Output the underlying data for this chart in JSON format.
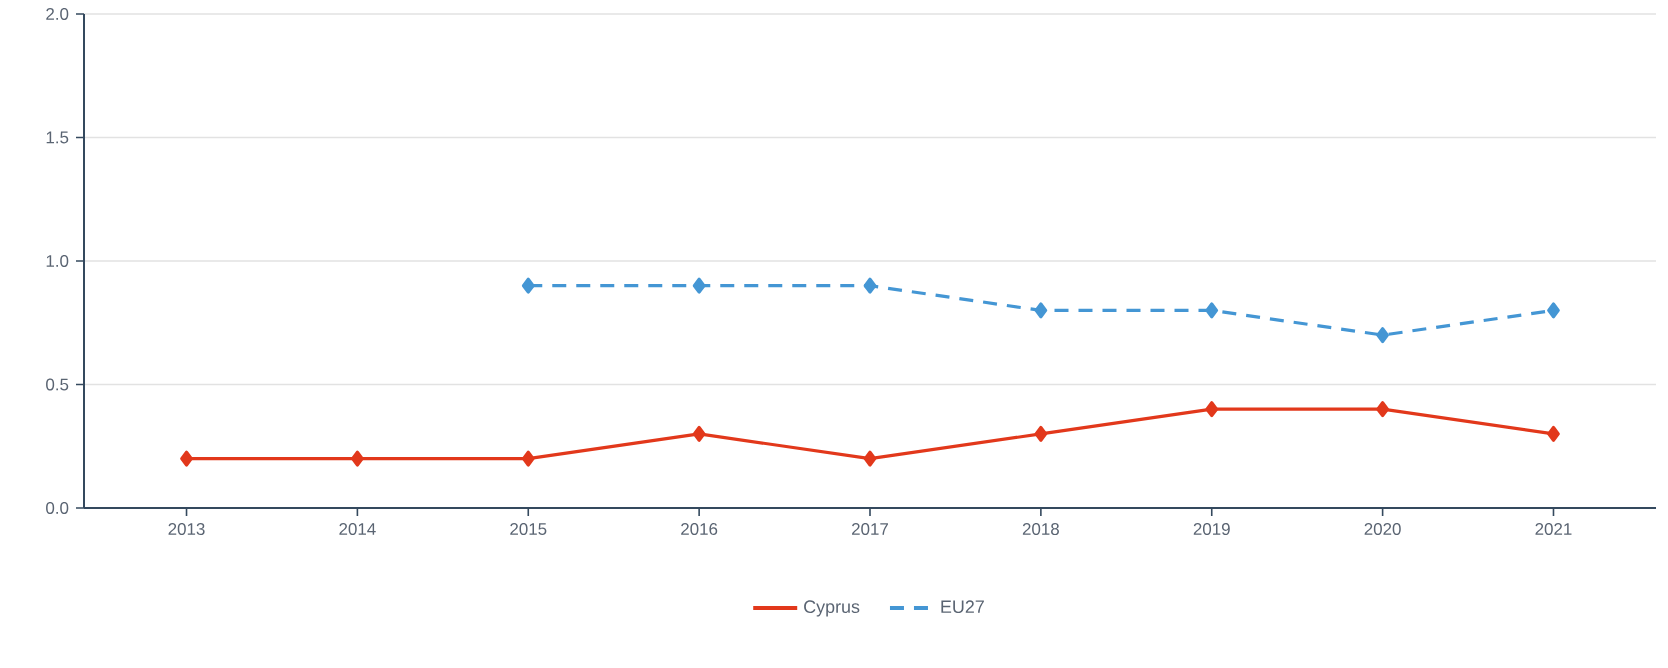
{
  "chart_data": {
    "type": "line",
    "categories": [
      "2013",
      "2014",
      "2015",
      "2016",
      "2017",
      "2018",
      "2019",
      "2020",
      "2021"
    ],
    "series": [
      {
        "name": "Cyprus",
        "color": "#e2381b",
        "line_style": "solid",
        "values": [
          0.2,
          0.2,
          0.2,
          0.3,
          0.2,
          0.3,
          0.4,
          0.4,
          0.3
        ]
      },
      {
        "name": "EU27",
        "color": "#4496d4",
        "line_style": "dashed",
        "values": [
          null,
          null,
          0.9,
          0.9,
          0.9,
          0.8,
          0.8,
          0.7,
          0.8
        ]
      }
    ],
    "ylim": [
      0,
      2
    ],
    "yticks": [
      {
        "value": 0,
        "label": "0.0"
      },
      {
        "value": 0.5,
        "label": "0.5"
      },
      {
        "value": 1,
        "label": "1.0"
      },
      {
        "value": 1.5,
        "label": "1.5"
      },
      {
        "value": 2,
        "label": "2.0"
      }
    ],
    "grid": "y",
    "legend": "bottom",
    "marker": "diamond"
  }
}
